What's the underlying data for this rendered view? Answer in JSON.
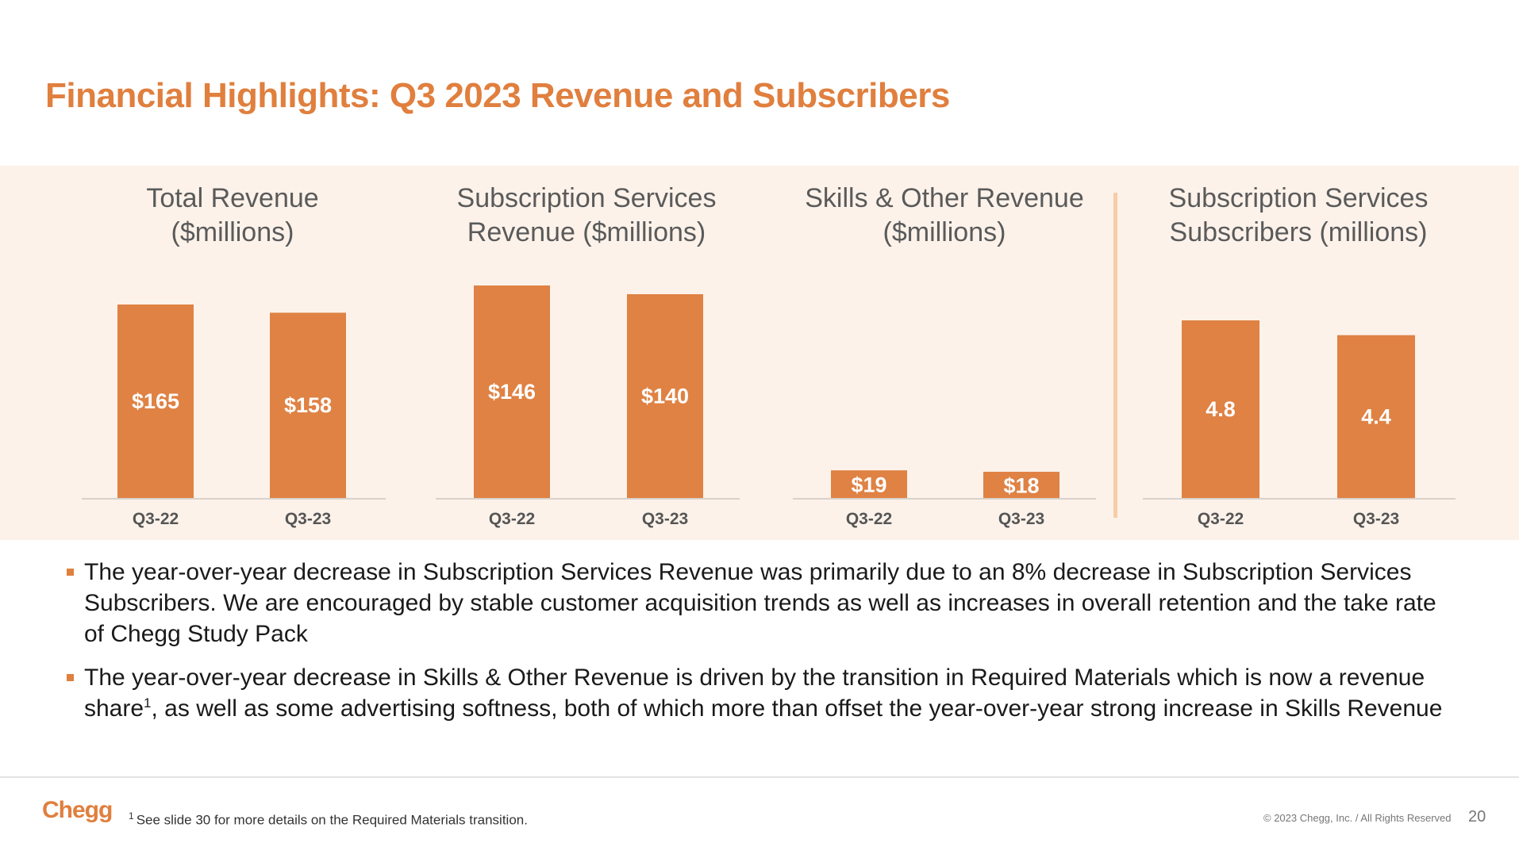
{
  "title": "Financial Highlights: Q3 2023 Revenue and Subscribers",
  "colors": {
    "accent": "#E07F3E",
    "bar": "#DF8244",
    "band_background": "#FCF2EA",
    "divider": "#F6CDA8"
  },
  "chart_data": [
    {
      "type": "bar",
      "title_lines": [
        "Total Revenue",
        "($millions)"
      ],
      "categories": [
        "Q3-22",
        "Q3-23"
      ],
      "values": [
        165,
        158
      ],
      "value_labels": [
        "$165",
        "$158"
      ],
      "unit": "$ millions"
    },
    {
      "type": "bar",
      "title_lines": [
        "Subscription Services",
        "Revenue ($millions)"
      ],
      "categories": [
        "Q3-22",
        "Q3-23"
      ],
      "values": [
        146,
        140
      ],
      "value_labels": [
        "$146",
        "$140"
      ],
      "unit": "$ millions"
    },
    {
      "type": "bar",
      "title_lines": [
        "Skills & Other Revenue",
        "($millions)"
      ],
      "categories": [
        "Q3-22",
        "Q3-23"
      ],
      "values": [
        19,
        18
      ],
      "value_labels": [
        "$19",
        "$18"
      ],
      "unit": "$ millions"
    },
    {
      "type": "bar",
      "title_lines": [
        "Subscription Services",
        "Subscribers (millions)"
      ],
      "categories": [
        "Q3-22",
        "Q3-23"
      ],
      "values": [
        4.8,
        4.4
      ],
      "value_labels": [
        "4.8",
        "4.4"
      ],
      "unit": "millions"
    }
  ],
  "bullets": [
    {
      "text": "The year-over-year decrease in Subscription Services Revenue was primarily due to an 8% decrease in Subscription Services Subscribers. We are encouraged by stable customer acquisition trends as well as increases in overall retention and the take rate of Chegg Study Pack"
    },
    {
      "text_before": "The year-over-year decrease in Skills & Other Revenue is driven by the transition in Required Materials which is now a revenue share",
      "superscript": "1",
      "text_after": ", as well as some advertising softness, both of which more than offset the year-over-year strong increase in Skills Revenue"
    }
  ],
  "footer": {
    "logo": "Chegg",
    "footnote_mark": "1",
    "footnote": "See slide 30 for more details on the Required Materials transition.",
    "copyright": "© 2023 Chegg, Inc. / All Rights Reserved",
    "page_number": "20"
  }
}
